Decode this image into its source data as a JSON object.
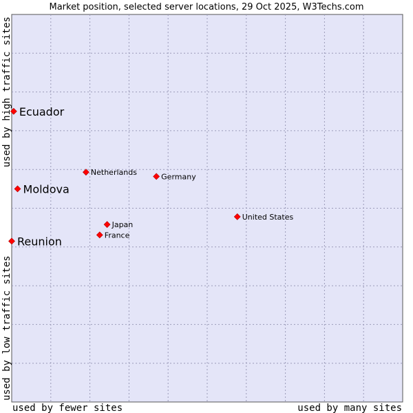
{
  "chart_data": {
    "type": "scatter",
    "title": "Market position, selected server locations, 29 Oct 2025, W3Techs.com",
    "xlabel_left": "used by fewer sites",
    "xlabel_right": "used by many sites",
    "ylabel_bottom": "used by low traffic sites",
    "ylabel_top": "used by high traffic sites",
    "xlim": [
      0,
      100
    ],
    "ylim": [
      0,
      100
    ],
    "grid": true,
    "marker_color": "#ff0000",
    "background_color": "#e4e5f8",
    "points": [
      {
        "label": "Ecuador",
        "x": 0.5,
        "y": 75,
        "emphasis": true
      },
      {
        "label": "Moldova",
        "x": 1.5,
        "y": 55,
        "emphasis": true
      },
      {
        "label": "Reunion",
        "x": 0,
        "y": 41.5,
        "emphasis": true
      },
      {
        "label": "Netherlands",
        "x": 19,
        "y": 59.3,
        "emphasis": false
      },
      {
        "label": "Germany",
        "x": 37,
        "y": 58.2,
        "emphasis": false
      },
      {
        "label": "United States",
        "x": 57.7,
        "y": 47.8,
        "emphasis": false
      },
      {
        "label": "Japan",
        "x": 24.4,
        "y": 45.8,
        "emphasis": false
      },
      {
        "label": "France",
        "x": 22.5,
        "y": 43.1,
        "emphasis": false
      }
    ]
  }
}
